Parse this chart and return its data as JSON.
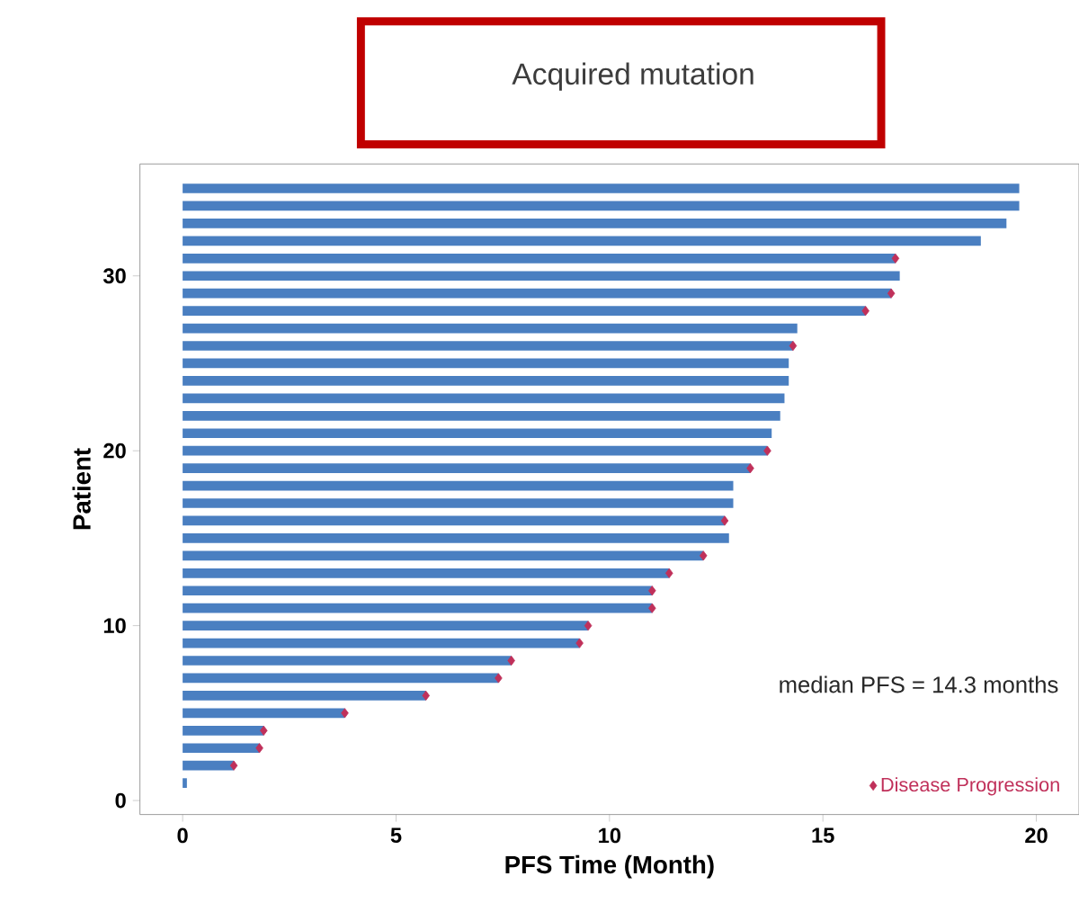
{
  "chart_data": {
    "type": "bar",
    "orientation": "horizontal",
    "title": "Acquired mutation",
    "xlabel": "PFS Time (Month)",
    "ylabel": "Patient",
    "xlim": [
      -1,
      21
    ],
    "ylim": [
      -0.8,
      36.4
    ],
    "xticks": [
      0,
      5,
      10,
      15,
      20
    ],
    "yticks": [
      0,
      10,
      20,
      30
    ],
    "legend": "bottom right",
    "annotations": [
      "median PFS = 14.3 months"
    ],
    "series": [
      {
        "color": "#4a7fc1",
        "x": [
          1,
          2,
          3,
          4,
          5,
          6,
          7,
          8,
          9,
          10,
          11,
          12,
          13,
          14,
          15,
          16,
          17,
          18,
          19,
          20,
          21,
          22,
          23,
          24,
          25,
          26,
          27,
          28,
          29,
          30,
          31,
          32,
          33,
          34,
          35
        ],
        "values": [
          0.1,
          1.2,
          1.8,
          1.9,
          3.8,
          5.7,
          7.4,
          7.7,
          9.3,
          9.5,
          11.0,
          11.0,
          11.4,
          12.2,
          12.8,
          12.7,
          12.9,
          12.9,
          13.3,
          13.7,
          13.8,
          14.0,
          14.1,
          14.2,
          14.2,
          14.3,
          14.4,
          16.0,
          16.6,
          16.8,
          16.7,
          18.7,
          19.3,
          19.6,
          19.6
        ]
      },
      {
        "type": "scatter",
        "name": "Disease Progression",
        "color": "#c0305a",
        "marker": "diamond",
        "x": [
          2,
          3,
          4,
          5,
          6,
          7,
          8,
          9,
          10,
          11,
          12,
          13,
          14,
          16,
          19,
          20,
          26,
          28,
          29,
          31
        ],
        "values": [
          1.2,
          1.8,
          1.9,
          3.8,
          5.7,
          7.4,
          7.7,
          9.3,
          9.5,
          11.0,
          11.0,
          11.4,
          12.2,
          12.7,
          13.3,
          13.7,
          14.3,
          16.0,
          16.6,
          16.7
        ]
      }
    ]
  }
}
